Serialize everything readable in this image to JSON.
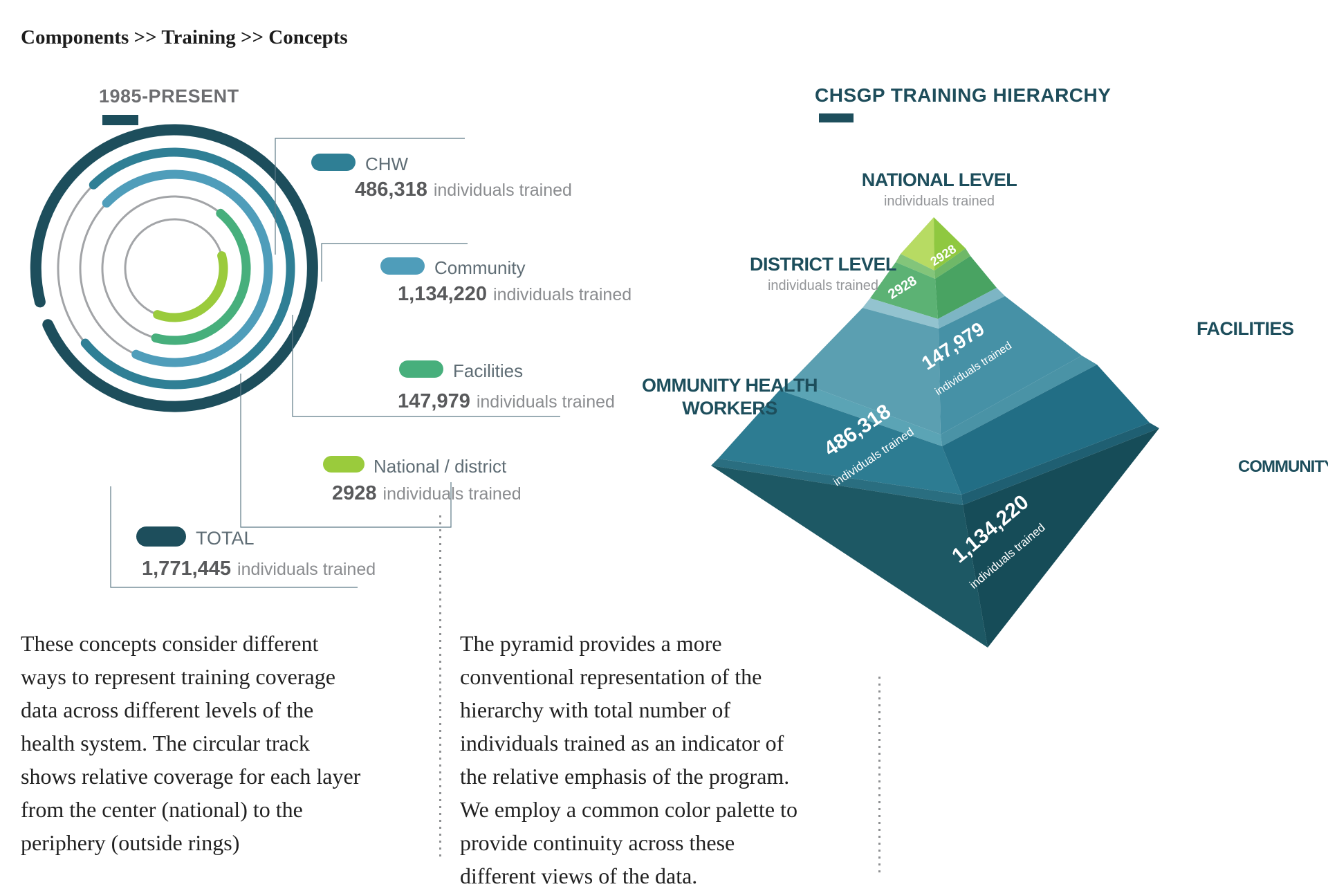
{
  "breadcrumb": "Components >> Training >> Concepts",
  "ring_section": {
    "heading": "1985-PRESENT",
    "legend": [
      {
        "label": "CHW",
        "value": "486,318",
        "suffix": "individuals trained"
      },
      {
        "label": "Community",
        "value": "1,134,220",
        "suffix": "individuals trained"
      },
      {
        "label": "Facilities",
        "value": "147,979",
        "suffix": "individuals trained"
      },
      {
        "label": "National / district",
        "value": "2928",
        "suffix": "individuals trained"
      },
      {
        "label": "TOTAL",
        "value": "1,771,445",
        "suffix": "individuals trained"
      }
    ]
  },
  "pyramid_section": {
    "heading": "CHSGP TRAINING HIERARCHY",
    "labels": {
      "national": {
        "title": "NATIONAL LEVEL",
        "subtitle": "individuals trained"
      },
      "district": {
        "title": "DISTRICT LEVEL",
        "subtitle": "individuals trained"
      },
      "chw": {
        "title": "OMMUNITY HEALTH\nWORKERS"
      },
      "facilities": {
        "title": "FACILITIES"
      },
      "community": {
        "title": "COMMUNITY"
      }
    },
    "levels": [
      {
        "name": "NATIONAL LEVEL",
        "value_display": "2928",
        "sublabel": ""
      },
      {
        "name": "DISTRICT LEVEL",
        "value_display": "2928",
        "sublabel": ""
      },
      {
        "name": "FACILITIES",
        "value_display": "147,979",
        "sublabel": "individuals trained"
      },
      {
        "name": "OMMUNITY HEALTH WORKERS",
        "value_display": "486,318",
        "sublabel": "individuals trained"
      },
      {
        "name": "COMMUNITY",
        "value_display": "1,134,220",
        "sublabel": "individuals trained"
      }
    ]
  },
  "paragraphs": {
    "left": "These concepts consider different\nways to represent training coverage\ndata across different levels of the\nhealth system. The circular track\nshows relative coverage for each layer\nfrom the center (national) to the\nperiphery (outside rings)",
    "right": "The pyramid provides a more\nconventional representation of the\nhierarchy with total number of\nindividuals trained as an indicator of\nthe relative emphasis of the program.\nWe employ a common color palette to\nprovide continuity across these\ndifferent views of the data."
  },
  "palette": {
    "dark_teal": "#1d4e5c",
    "chw_teal": "#2f7f95",
    "community_blue": "#4f9dba",
    "facilities_green": "#47af7c",
    "national_lime": "#9acb3c",
    "track_gray": "#a2a4a7",
    "connector": "#5d7a87",
    "pyr_cap_l": "#b7db63",
    "pyr_cap_r": "#8fc840",
    "pyr_rim2_l": "#83c57a",
    "pyr_rim2_r": "#6fb868",
    "pyr_l2_l": "#5cb274",
    "pyr_l2_r": "#49a362",
    "pyr_rim3_l": "#93c3cf",
    "pyr_rim3_r": "#7db5c4",
    "pyr_l3_l": "#5b9fb1",
    "pyr_l3_r": "#4691a6",
    "pyr_rim4_l": "#5ba4b5",
    "pyr_rim4_r": "#4a93a6",
    "pyr_l4_l": "#2d7c92",
    "pyr_l4_r": "#226e85",
    "pyr_rim5_l": "#2a6e80",
    "pyr_rim5_r": "#1f5f72",
    "pyr_l5_l": "#1d5864",
    "pyr_l5_r": "#164c58"
  },
  "chart_data": [
    {
      "type": "radial-progress-rings",
      "title": "1985-PRESENT",
      "rings_outer_to_inner": [
        "TOTAL",
        "CHW",
        "Community",
        "Facilities",
        "National / district"
      ],
      "series": [
        {
          "name": "CHW",
          "individuals_trained": 486318
        },
        {
          "name": "Community",
          "individuals_trained": 1134220
        },
        {
          "name": "Facilities",
          "individuals_trained": 147979
        },
        {
          "name": "National / district",
          "individuals_trained": 2928
        },
        {
          "name": "TOTAL",
          "individuals_trained": 1771445
        }
      ],
      "legend_position": "right"
    },
    {
      "type": "pyramid",
      "title": "CHSGP TRAINING HIERARCHY",
      "levels_top_to_bottom": [
        {
          "label": "NATIONAL LEVEL",
          "value": 2928
        },
        {
          "label": "DISTRICT LEVEL",
          "value": 2928
        },
        {
          "label": "FACILITIES",
          "value": 147979
        },
        {
          "label": "OMMUNITY HEALTH WORKERS",
          "value": 486318
        },
        {
          "label": "COMMUNITY",
          "value": 1134220
        }
      ]
    }
  ]
}
